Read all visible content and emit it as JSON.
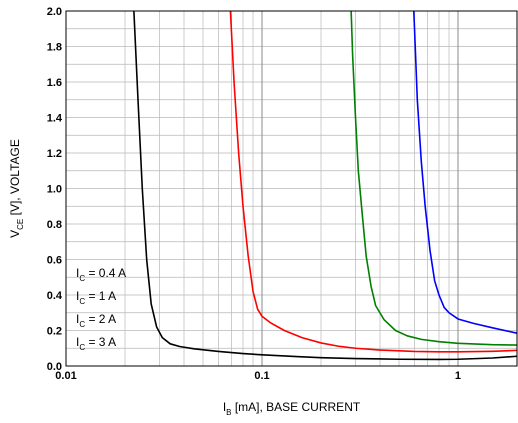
{
  "chart_data": {
    "type": "line",
    "xscale": "log",
    "xlim": [
      0.01,
      2
    ],
    "ylim": [
      0,
      2.0
    ],
    "grid": true,
    "xlabel": {
      "main": "I",
      "sub": "B",
      "rest": " [mA], BASE CURRENT"
    },
    "ylabel": {
      "main": "V",
      "sub": "CE",
      "rest": " [V], VOLTAGE"
    },
    "xticks": [
      {
        "value": 0.01,
        "label": "0.01"
      },
      {
        "value": 0.1,
        "label": "0.1"
      },
      {
        "value": 1,
        "label": "1"
      }
    ],
    "yticks": [
      {
        "value": 0.0,
        "label": "0.0"
      },
      {
        "value": 0.2,
        "label": "0.2"
      },
      {
        "value": 0.4,
        "label": "0.4"
      },
      {
        "value": 0.6,
        "label": "0.6"
      },
      {
        "value": 0.8,
        "label": "0.8"
      },
      {
        "value": 1.0,
        "label": "1.0"
      },
      {
        "value": 1.2,
        "label": "1.2"
      },
      {
        "value": 1.4,
        "label": "1.4"
      },
      {
        "value": 1.6,
        "label": "1.6"
      },
      {
        "value": 1.8,
        "label": "1.8"
      },
      {
        "value": 2.0,
        "label": "2.0"
      }
    ],
    "legend_position": "bottom-left",
    "series": [
      {
        "name": "I_C = 0.4 A",
        "label_main": "I",
        "label_sub": "C",
        "label_rest": " = 0.4 A",
        "color": "#000000",
        "points": [
          [
            0.0222,
            2.0
          ],
          [
            0.0233,
            1.5
          ],
          [
            0.0245,
            1.0
          ],
          [
            0.0258,
            0.6
          ],
          [
            0.0272,
            0.35
          ],
          [
            0.029,
            0.22
          ],
          [
            0.031,
            0.16
          ],
          [
            0.034,
            0.125
          ],
          [
            0.038,
            0.11
          ],
          [
            0.045,
            0.097
          ],
          [
            0.06,
            0.082
          ],
          [
            0.08,
            0.07
          ],
          [
            0.1,
            0.063
          ],
          [
            0.15,
            0.053
          ],
          [
            0.2,
            0.047
          ],
          [
            0.3,
            0.042
          ],
          [
            0.5,
            0.038
          ],
          [
            0.8,
            0.037
          ],
          [
            1.0,
            0.038
          ],
          [
            1.5,
            0.045
          ],
          [
            2.0,
            0.055
          ]
        ]
      },
      {
        "name": "I_C = 1 A",
        "label_main": "I",
        "label_sub": "C",
        "label_rest": " = 1 A",
        "color": "#ff0000",
        "points": [
          [
            0.069,
            2.0
          ],
          [
            0.072,
            1.6
          ],
          [
            0.076,
            1.2
          ],
          [
            0.08,
            0.9
          ],
          [
            0.085,
            0.62
          ],
          [
            0.09,
            0.42
          ],
          [
            0.095,
            0.32
          ],
          [
            0.1,
            0.28
          ],
          [
            0.11,
            0.245
          ],
          [
            0.13,
            0.2
          ],
          [
            0.16,
            0.16
          ],
          [
            0.2,
            0.13
          ],
          [
            0.25,
            0.11
          ],
          [
            0.3,
            0.1
          ],
          [
            0.4,
            0.09
          ],
          [
            0.6,
            0.082
          ],
          [
            0.8,
            0.08
          ],
          [
            1.0,
            0.08
          ],
          [
            1.5,
            0.083
          ],
          [
            2.0,
            0.088
          ]
        ]
      },
      {
        "name": "I_C = 2 A",
        "label_main": "I",
        "label_sub": "C",
        "label_rest": " = 2 A",
        "color": "#008000",
        "points": [
          [
            0.285,
            2.0
          ],
          [
            0.29,
            1.75
          ],
          [
            0.3,
            1.4
          ],
          [
            0.31,
            1.1
          ],
          [
            0.325,
            0.85
          ],
          [
            0.34,
            0.62
          ],
          [
            0.36,
            0.45
          ],
          [
            0.38,
            0.34
          ],
          [
            0.42,
            0.26
          ],
          [
            0.48,
            0.2
          ],
          [
            0.55,
            0.17
          ],
          [
            0.65,
            0.15
          ],
          [
            0.8,
            0.137
          ],
          [
            1.0,
            0.128
          ],
          [
            1.5,
            0.12
          ],
          [
            2.0,
            0.118
          ]
        ]
      },
      {
        "name": "I_C = 3 A",
        "label_main": "I",
        "label_sub": "C",
        "label_rest": " = 3 A",
        "color": "#0000ff",
        "points": [
          [
            0.595,
            2.0
          ],
          [
            0.6,
            1.9
          ],
          [
            0.62,
            1.5
          ],
          [
            0.65,
            1.15
          ],
          [
            0.68,
            0.9
          ],
          [
            0.72,
            0.65
          ],
          [
            0.76,
            0.48
          ],
          [
            0.8,
            0.4
          ],
          [
            0.85,
            0.33
          ],
          [
            0.9,
            0.3
          ],
          [
            1.0,
            0.265
          ],
          [
            1.2,
            0.24
          ],
          [
            1.5,
            0.215
          ],
          [
            2.0,
            0.185
          ]
        ]
      }
    ]
  }
}
